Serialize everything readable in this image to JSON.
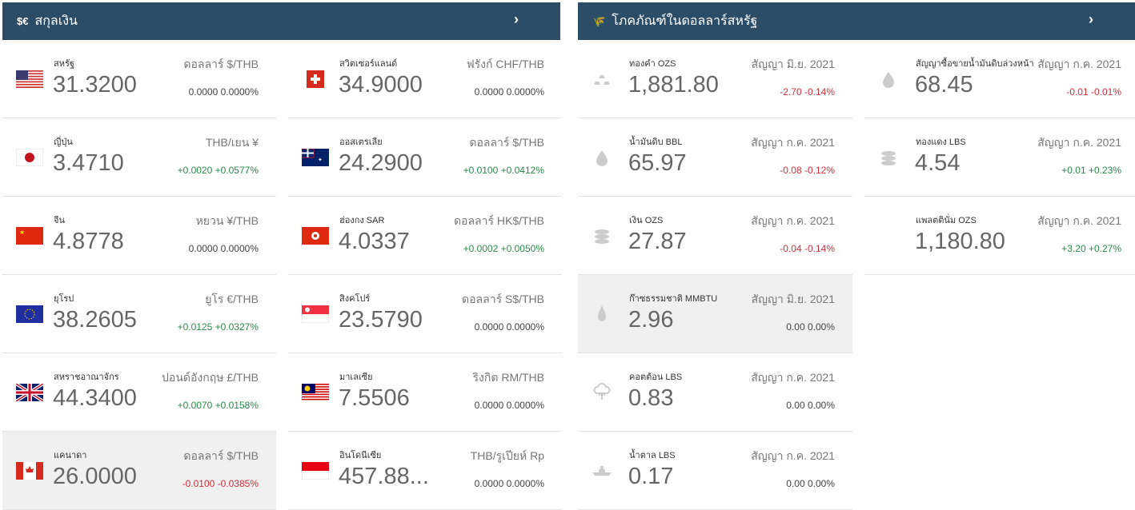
{
  "currency": {
    "title": "สกุลเงิน",
    "icon_text": "$€",
    "icon": "currency-icon",
    "columns": [
      [
        {
          "flag": "us",
          "name": "สหรัฐ",
          "value": "31.3200",
          "unit": "ดอลลาร์ $/THB",
          "change": "0.0000 0.0000%",
          "dir": "flat"
        },
        {
          "flag": "jp",
          "name": "ญี่ปุ่น",
          "value": "3.4710",
          "unit": "THB/เยน ¥",
          "change": "+0.0020 +0.0577%",
          "dir": "up"
        },
        {
          "flag": "cn",
          "name": "จีน",
          "value": "4.8778",
          "unit": "หยวน ¥/THB",
          "change": "0.0000 0.0000%",
          "dir": "flat"
        },
        {
          "flag": "eu",
          "name": "ยุโรป",
          "value": "38.2605",
          "unit": "ยูโร €/THB",
          "change": "+0.0125 +0.0327%",
          "dir": "up"
        },
        {
          "flag": "gb",
          "name": "สหราชอาณาจักร",
          "value": "44.3400",
          "unit": "ปอนด์อังกฤษ £/THB",
          "change": "+0.0070 +0.0158%",
          "dir": "up"
        },
        {
          "flag": "ca",
          "name": "แคนาดา",
          "value": "26.0000",
          "unit": "ดอลลาร์ $/THB",
          "change": "-0.0100 -0.0385%",
          "dir": "down",
          "highlight": true
        }
      ],
      [
        {
          "flag": "ch",
          "name": "สวิตเซอร์แลนด์",
          "value": "34.9000",
          "unit": "ฟรังก์ CHF/THB",
          "change": "0.0000 0.0000%",
          "dir": "flat"
        },
        {
          "flag": "au",
          "name": "ออสเตรเลีย",
          "value": "24.2900",
          "unit": "ดอลลาร์ $/THB",
          "change": "+0.0100 +0.0412%",
          "dir": "up"
        },
        {
          "flag": "hk",
          "name": "ฮ่องกง SAR",
          "value": "4.0337",
          "unit": "ดอลลาร์ HK$/THB",
          "change": "+0.0002 +0.0050%",
          "dir": "up"
        },
        {
          "flag": "sg",
          "name": "สิงคโปร์",
          "value": "23.5790",
          "unit": "ดอลลาร์ S$/THB",
          "change": "0.0000 0.0000%",
          "dir": "flat"
        },
        {
          "flag": "my",
          "name": "มาเลเซีย",
          "value": "7.5506",
          "unit": "ริงกิต RM/THB",
          "change": "0.0000 0.0000%",
          "dir": "flat"
        },
        {
          "flag": "id",
          "name": "อินโดนีเซีย",
          "value": "457.88...",
          "unit": "THB/รูเปียห์ Rp",
          "change": "0.0000 0.0000%",
          "dir": "flat"
        }
      ]
    ]
  },
  "commodities": {
    "title": "โภคภัณฑ์ในดอลลาร์สหรัฐ",
    "icon": "wheat-icon",
    "columns": [
      [
        {
          "icon": "gold",
          "name": "ทองคำ OZS",
          "value": "1,881.80",
          "unit": "สัญญา มิ.ย. 2021",
          "change": "-2.70 -0.14%",
          "dir": "down"
        },
        {
          "icon": "drop",
          "name": "น้ำมันดิบ BBL",
          "value": "65.97",
          "unit": "สัญญา ก.ค. 2021",
          "change": "-0.08 -0.12%",
          "dir": "down"
        },
        {
          "icon": "coins",
          "name": "เงิน OZS",
          "value": "27.87",
          "unit": "สัญญา ก.ค. 2021",
          "change": "-0.04 -0.14%",
          "dir": "down"
        },
        {
          "icon": "flame",
          "name": "ก๊าซธรรมชาติ MMBTU",
          "value": "2.96",
          "unit": "สัญญา มิ.ย. 2021",
          "change": "0.00 0.00%",
          "dir": "flat",
          "highlight": true
        },
        {
          "icon": "cotton",
          "name": "คอตต้อน LBS",
          "value": "0.83",
          "unit": "สัญญา ก.ค. 2021",
          "change": "0.00 0.00%",
          "dir": "flat"
        },
        {
          "icon": "sugar",
          "name": "น้ำตาล LBS",
          "value": "0.17",
          "unit": "สัญญา ก.ค. 2021",
          "change": "0.00 0.00%",
          "dir": "flat"
        }
      ],
      [
        {
          "icon": "drop",
          "name": "สัญญาซื้อขายน้ำมันดิบล่วงหน้า",
          "value": "68.45",
          "unit": "สัญญา ก.ค. 2021",
          "change": "-0.01 -0.01%",
          "dir": "down"
        },
        {
          "icon": "coins",
          "name": "ทองแดง LBS",
          "value": "4.54",
          "unit": "สัญญา ก.ค. 2021",
          "change": "+0.01 +0.23%",
          "dir": "up"
        },
        {
          "icon": "none",
          "name": "แพลตตินั่ม OZS",
          "value": "1,180.80",
          "unit": "สัญญา ก.ค. 2021",
          "change": "+3.20 +0.27%",
          "dir": "up"
        }
      ]
    ]
  }
}
